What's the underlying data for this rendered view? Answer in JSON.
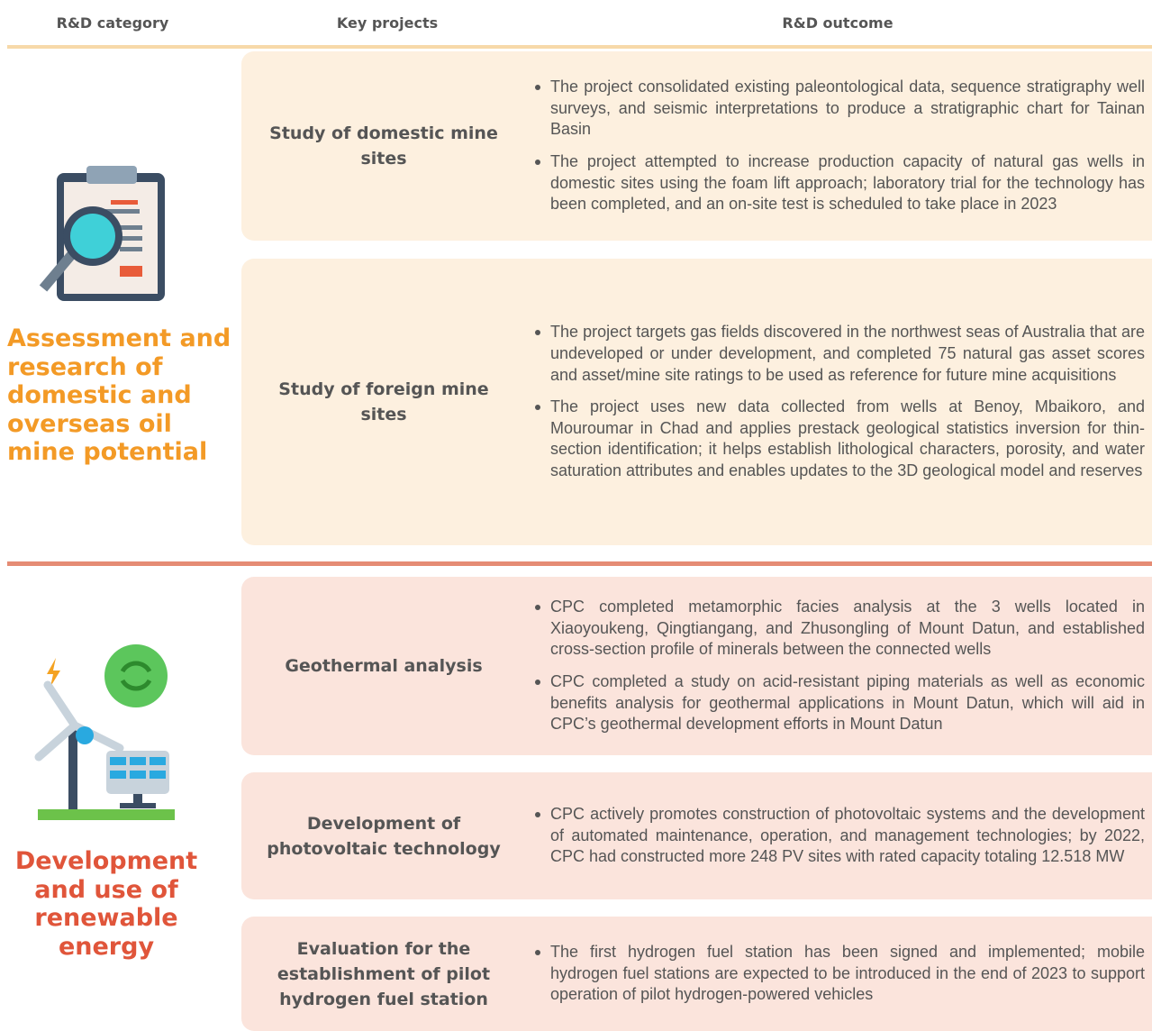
{
  "header": {
    "columns": [
      "R&D category",
      "Key projects",
      "R&D outcome"
    ]
  },
  "sections": [
    {
      "category": "Assessment and research of domestic and overseas oil mine potential",
      "projects": [
        {
          "name": "Study of domestic mine sites",
          "outcomes": [
            "The project consolidated existing paleontological data, sequence stratigraphy well surveys, and seismic interpretations to produce a stratigraphic chart for Tainan Basin",
            "The project attempted to increase production capacity of natural gas wells in domestic sites using the foam lift approach; laboratory trial for the technology has been completed, and an on-site test is scheduled to take place in 2023"
          ]
        },
        {
          "name": "Study of foreign mine sites",
          "outcomes": [
            "The project targets gas fields discovered in the northwest seas of Australia that are undeveloped or under development, and completed 75 natural gas asset scores and asset/mine site ratings to be used as reference for future mine acquisitions",
            "The project uses new data collected from wells at Benoy, Mbaikoro, and Mouroumar in Chad and applies prestack geological statistics inversion for thin-section identification; it helps establish lithological characters, porosity, and water saturation attributes and enables updates to the 3D geological model and reserves"
          ]
        }
      ]
    },
    {
      "category": "Development and use of renewable energy",
      "projects": [
        {
          "name": "Geothermal analysis",
          "outcomes": [
            "CPC completed metamorphic facies analysis at the 3 wells located in Xiaoyoukeng, Qingtiangang, and Zhusongling of Mount Datun, and established cross-section profile of minerals between the connected wells",
            "CPC completed a study on acid-resistant piping materials as well as economic benefits analysis for geothermal applications in Mount Datun, which will aid in CPC’s geothermal development efforts in Mount Datun"
          ]
        },
        {
          "name": "Development of photovoltaic technology",
          "outcomes": [
            "CPC actively promotes construction of photovoltaic systems and the development of automated maintenance, operation, and management technologies; by 2022, CPC had constructed more 248 PV sites with rated capacity totaling 12.518 MW"
          ]
        },
        {
          "name": "Evaluation for the establishment of pilot hydrogen fuel station",
          "outcomes": [
            "The first hydrogen fuel station has been signed and implemented; mobile hydrogen fuel stations are expected to be introduced in the end of 2023 to support operation of pilot hydrogen-powered vehicles"
          ]
        }
      ]
    }
  ]
}
